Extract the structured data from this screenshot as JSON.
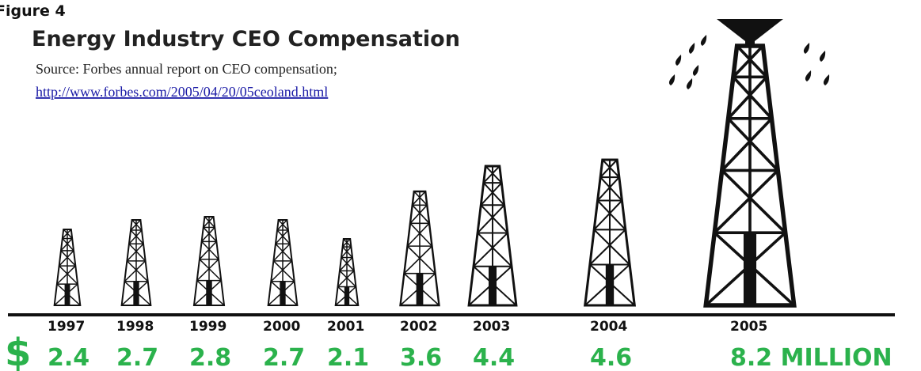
{
  "figure_label": "Figure 4",
  "chart_data": {
    "type": "pictograph",
    "title": "Energy Industry CEO Compensation",
    "source": "Source: Forbes annual report on CEO compensation;",
    "source_link": "http://www.forbes.com/2005/04/20/05ceoland.html",
    "currency_symbol": "$",
    "categories": [
      "1997",
      "1998",
      "1999",
      "2000",
      "2001",
      "2002",
      "2003",
      "2004",
      "2005"
    ],
    "values": [
      2.4,
      2.7,
      2.8,
      2.7,
      2.1,
      3.6,
      4.4,
      4.6,
      8.2
    ],
    "value_labels": [
      "2.4",
      "2.7",
      "2.8",
      "2.7",
      "2.1",
      "3.6",
      "4.4",
      "4.6",
      "8.2 MILLION"
    ],
    "color": "#111111",
    "label_color": "#2bb24c"
  }
}
